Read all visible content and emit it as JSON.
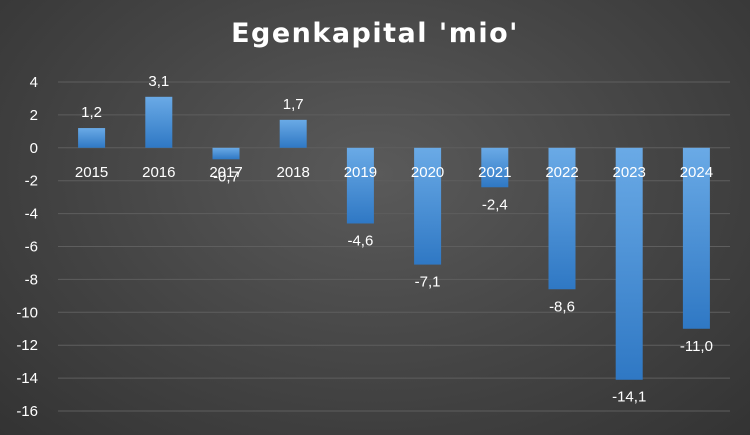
{
  "chart_data": {
    "type": "bar",
    "title": "Egenkapital 'mio'",
    "categories": [
      "2015",
      "2016",
      "2017",
      "2018",
      "2019",
      "2020",
      "2021",
      "2022",
      "2023",
      "2024"
    ],
    "values": [
      1.2,
      3.1,
      -0.7,
      1.7,
      -4.6,
      -7.1,
      -2.4,
      -8.6,
      -14.1,
      -11.0
    ],
    "value_labels": [
      "1,2",
      "3,1",
      "-0,7",
      "1,7",
      "-4,6",
      "-7,1",
      "-2,4",
      "-8,6",
      "-14,1",
      "-11,0"
    ],
    "yticks": [
      4,
      2,
      0,
      -2,
      -4,
      -6,
      -8,
      -10,
      -12,
      -14,
      -16
    ],
    "ylim": [
      -16,
      4
    ],
    "xlabel": "",
    "ylabel": "",
    "grid": true,
    "legend": "none",
    "colors": {
      "bar_top": "#6aaae6",
      "bar_bottom": "#2f78c4",
      "grid": "#5e5e5e",
      "text": "#ffffff"
    }
  }
}
